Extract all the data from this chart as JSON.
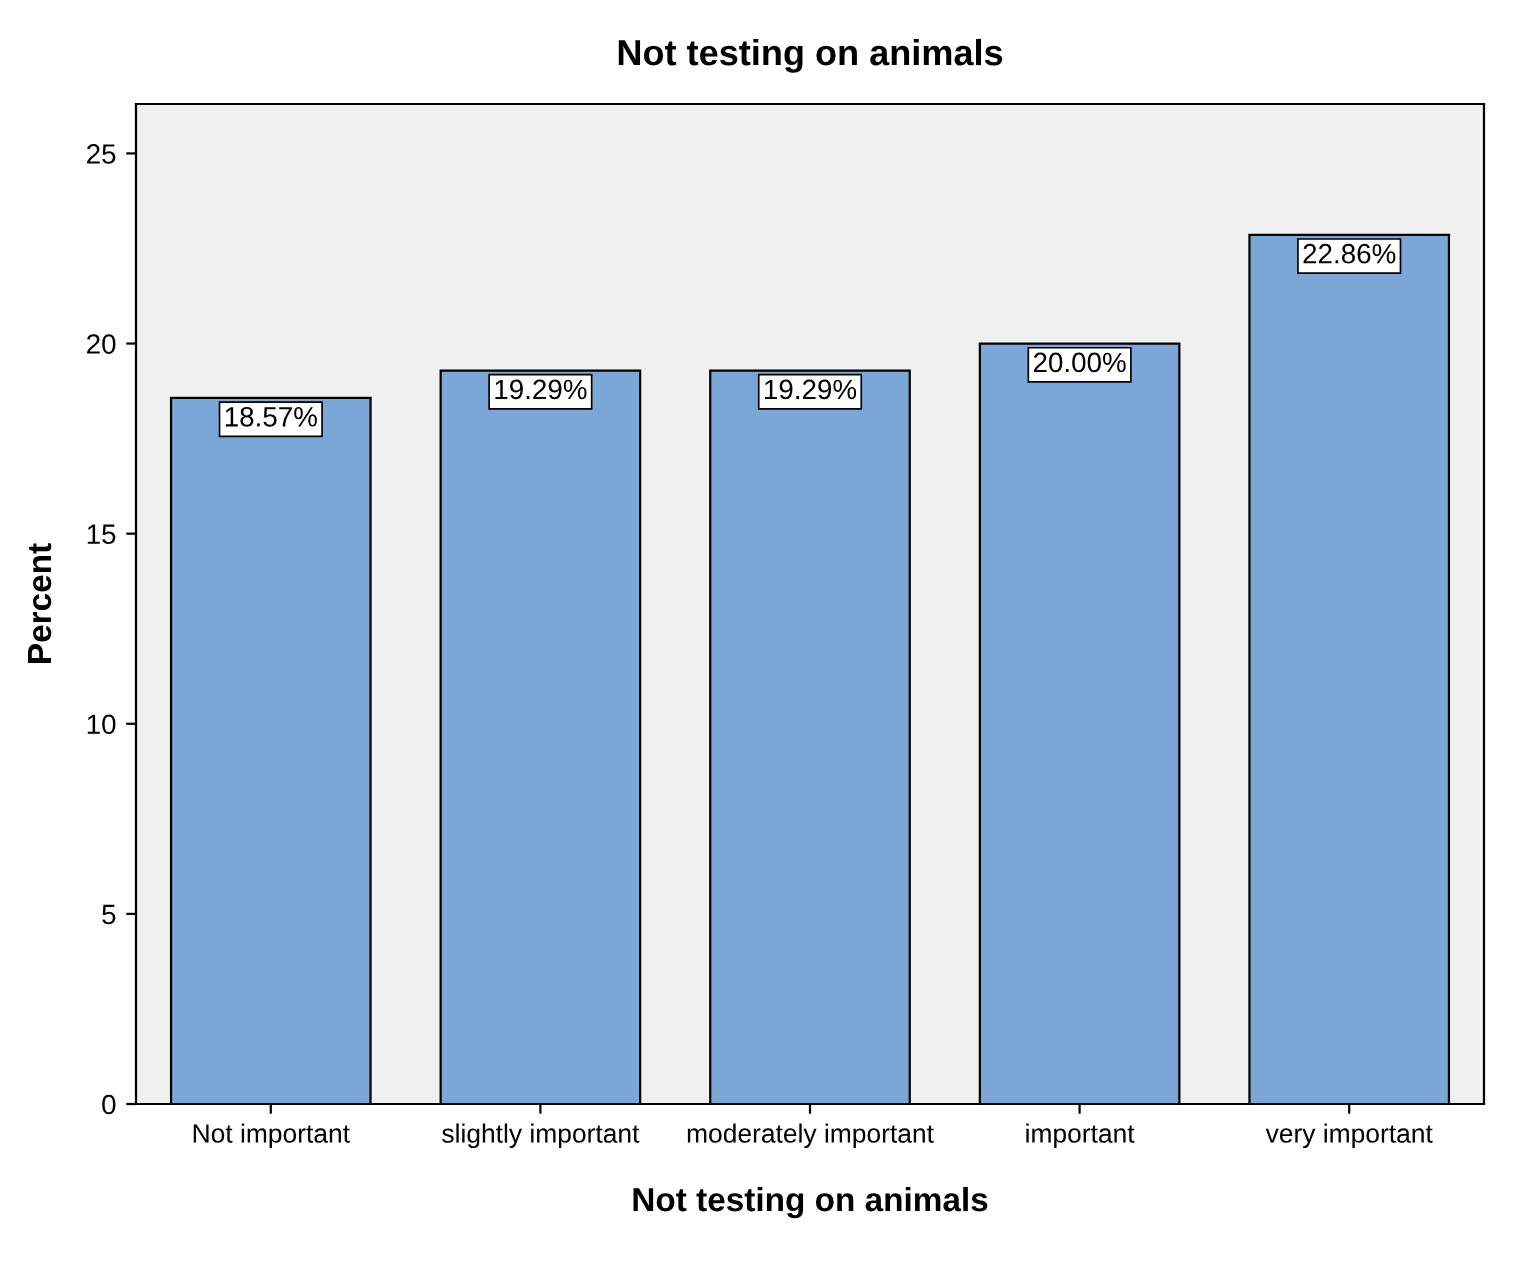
{
  "chart_data": {
    "type": "bar",
    "title": "Not testing on animals",
    "xlabel": "Not testing on animals",
    "ylabel": "Percent",
    "categories": [
      "Not important",
      "slightly important",
      "moderately important",
      "important",
      "very important"
    ],
    "values": [
      18.57,
      19.29,
      19.29,
      20.0,
      22.86
    ],
    "value_labels": [
      "18.57%",
      "19.29%",
      "19.29%",
      "20.00%",
      "22.86%"
    ],
    "color": "#7ba7d6",
    "ylim": [
      0,
      26.3
    ],
    "yticks": [
      0,
      5,
      10,
      15,
      20,
      25
    ],
    "grid": false
  }
}
